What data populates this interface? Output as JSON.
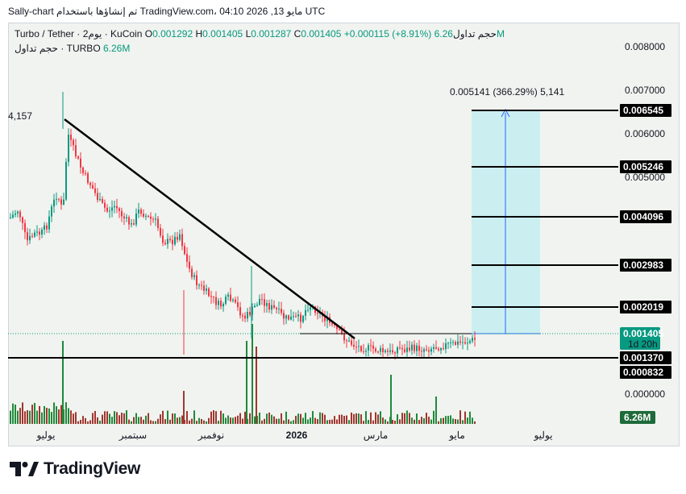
{
  "header": {
    "text": "Sally-chart تم إنشاؤها باستخدام TradingView.com، 04:10 2026 ,13 مايو UTC"
  },
  "legend": {
    "symbol": "Turbo / Tether · 2يوم · KuCoin",
    "o_label": "O",
    "o_value": "0.001292",
    "h_label": "H",
    "h_value": "0.001405",
    "l_label": "L",
    "l_value": "0.001287",
    "c_label": "C",
    "c_value": "0.001405",
    "change": "+0.000115 (+8.91%)",
    "vol_label": "حجم تداول",
    "vol_value": "6.26M",
    "line2_label": "حجم تداول · TURBO",
    "line2_value": "6.26M"
  },
  "logo": {
    "text": "TradingView"
  },
  "colors": {
    "up": "#089981",
    "down": "#f23645",
    "vol_up": "#1e8a3a",
    "vol_down": "#a0362f",
    "projection": "#b2ebf2",
    "arrow": "#2962ff"
  },
  "chart_data": {
    "type": "candlestick",
    "price_axis": [
      "0.008000",
      "0.007000",
      "0.006000",
      "0.005000",
      "0.000000"
    ],
    "time_axis": [
      "يوليو",
      "سبتمبر",
      "نوفمبر",
      "2026",
      "مارس",
      "مايو",
      "يوليو"
    ],
    "ylim": [
      0,
      0.0084
    ],
    "level_tags": [
      "0.006545",
      "0.005246",
      "0.004096",
      "0.002983",
      "0.002019",
      "0.001370",
      "0.000832"
    ],
    "current_price_tag": {
      "price": "0.001405",
      "countdown": "1d 20h"
    },
    "volume_tag": "6.26M",
    "annotations": {
      "left_label": "4,157",
      "measure": "0.005141 (366.29%) 5,141"
    },
    "projection": {
      "from": 0.001405,
      "to": 0.006545
    },
    "trendline": {
      "start_price": 0.0064,
      "end_price": 0.00137
    },
    "support_level": 0.00137
  }
}
